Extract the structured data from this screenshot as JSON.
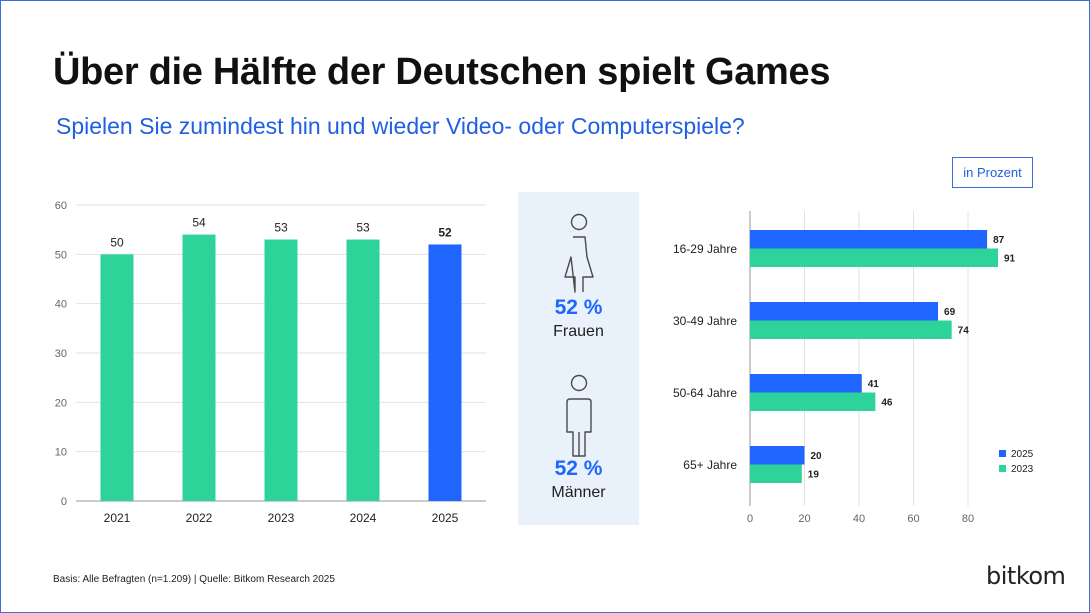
{
  "title": "Über die Hälfte der Deutschen spielt Games",
  "subtitle": "Spielen Sie zumindest hin und wieder Video- oder Computerspiele?",
  "unit_label": "in Prozent",
  "colors": {
    "green": "#2ed39a",
    "blue": "#1f66ff",
    "accent_text": "#1f5fe0",
    "panel_bg": "#e9f2fb"
  },
  "gender": {
    "women": {
      "icon": "woman-icon",
      "value": "52 %",
      "label": "Frauen"
    },
    "men": {
      "icon": "man-icon",
      "value": "52 %",
      "label": "Männer"
    }
  },
  "footer": "Basis: Alle Befragten (n=1.209) | Quelle: Bitkom Research 2025",
  "logo": "bitkom",
  "chart_data": [
    {
      "type": "bar",
      "title": "",
      "categories": [
        "2021",
        "2022",
        "2023",
        "2024",
        "2025"
      ],
      "values": [
        50,
        54,
        53,
        53,
        52
      ],
      "value_labels": [
        "50",
        "54",
        "53",
        "53",
        "52"
      ],
      "highlight_index": 4,
      "yticks": [
        "0",
        "10",
        "20",
        "30",
        "40",
        "50",
        "60"
      ],
      "ylim": [
        0,
        60
      ],
      "xlabel": "",
      "ylabel": "",
      "grid": true
    },
    {
      "type": "bar",
      "orientation": "horizontal",
      "categories": [
        "16-29 Jahre",
        "30-49 Jahre",
        "50-64 Jahre",
        "65+ Jahre"
      ],
      "series": [
        {
          "name": "2025",
          "values": [
            87,
            69,
            41,
            20
          ],
          "labels": [
            "87",
            "69",
            "41",
            "20"
          ],
          "color": "#1f66ff"
        },
        {
          "name": "2023",
          "values": [
            91,
            74,
            46,
            19
          ],
          "labels": [
            "91",
            "74",
            "46",
            "19"
          ],
          "color": "#2ed39a"
        }
      ],
      "xticks": [
        "0",
        "20",
        "40",
        "60",
        "80"
      ],
      "xlim": [
        0,
        92
      ],
      "legend": "bottom-right",
      "grid": true
    }
  ]
}
